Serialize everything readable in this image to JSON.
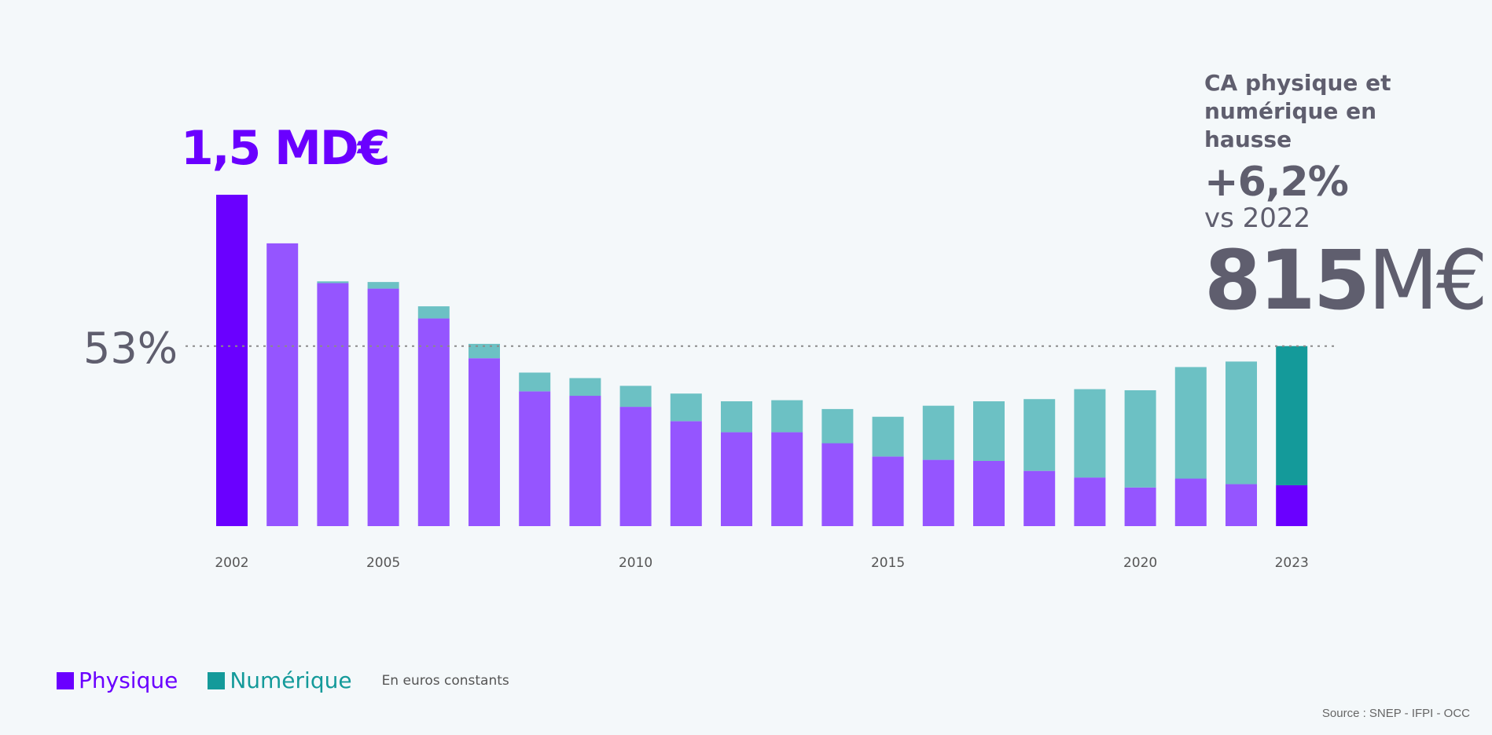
{
  "annotations": {
    "peak_value": "1,5 MD€",
    "reference_pct": "53%",
    "callout_text": "CA physique et numérique en hausse",
    "callout_growth": "+6,2%",
    "callout_vs": "vs 2022",
    "callout_total_num": "815",
    "callout_total_unit": "M€"
  },
  "legend": {
    "physique": "Physique",
    "numerique": "Numérique",
    "note": "En euros constants"
  },
  "source": "Source : SNEP - IFPI - OCC",
  "colors": {
    "physique_highlight": "#6a00ff",
    "physique": "#9555ff",
    "numerique": "#6cc1c4",
    "numerique_highlight": "#149a9a",
    "reference_line": "#8a8a8a",
    "text": "#5f5e6e"
  },
  "chart_data": {
    "type": "bar",
    "stacked": true,
    "unit": "M€",
    "categories": [
      "2002",
      "2003",
      "2004",
      "2005",
      "2006",
      "2007",
      "2008",
      "2009",
      "2010",
      "2011",
      "2012",
      "2013",
      "2014",
      "2015",
      "2016",
      "2017",
      "2018",
      "2019",
      "2020",
      "2021",
      "2022",
      "2023"
    ],
    "tick_labels": [
      "2002",
      "2005",
      "2010",
      "2015",
      "2020",
      "2023"
    ],
    "series": [
      {
        "name": "Physique",
        "values": [
          1500,
          1280,
          1100,
          1075,
          940,
          760,
          610,
          590,
          540,
          475,
          425,
          425,
          375,
          315,
          300,
          295,
          250,
          220,
          175,
          215,
          190,
          185
        ]
      },
      {
        "name": "Numérique",
        "values": [
          0,
          0,
          8,
          30,
          55,
          65,
          85,
          80,
          95,
          125,
          140,
          145,
          155,
          180,
          245,
          270,
          325,
          400,
          440,
          505,
          555,
          630
        ]
      }
    ],
    "reference_line": {
      "value": 815,
      "label": "53%"
    },
    "ylim": [
      0,
      1500
    ],
    "grid": false,
    "legend_position": "bottom-left"
  }
}
